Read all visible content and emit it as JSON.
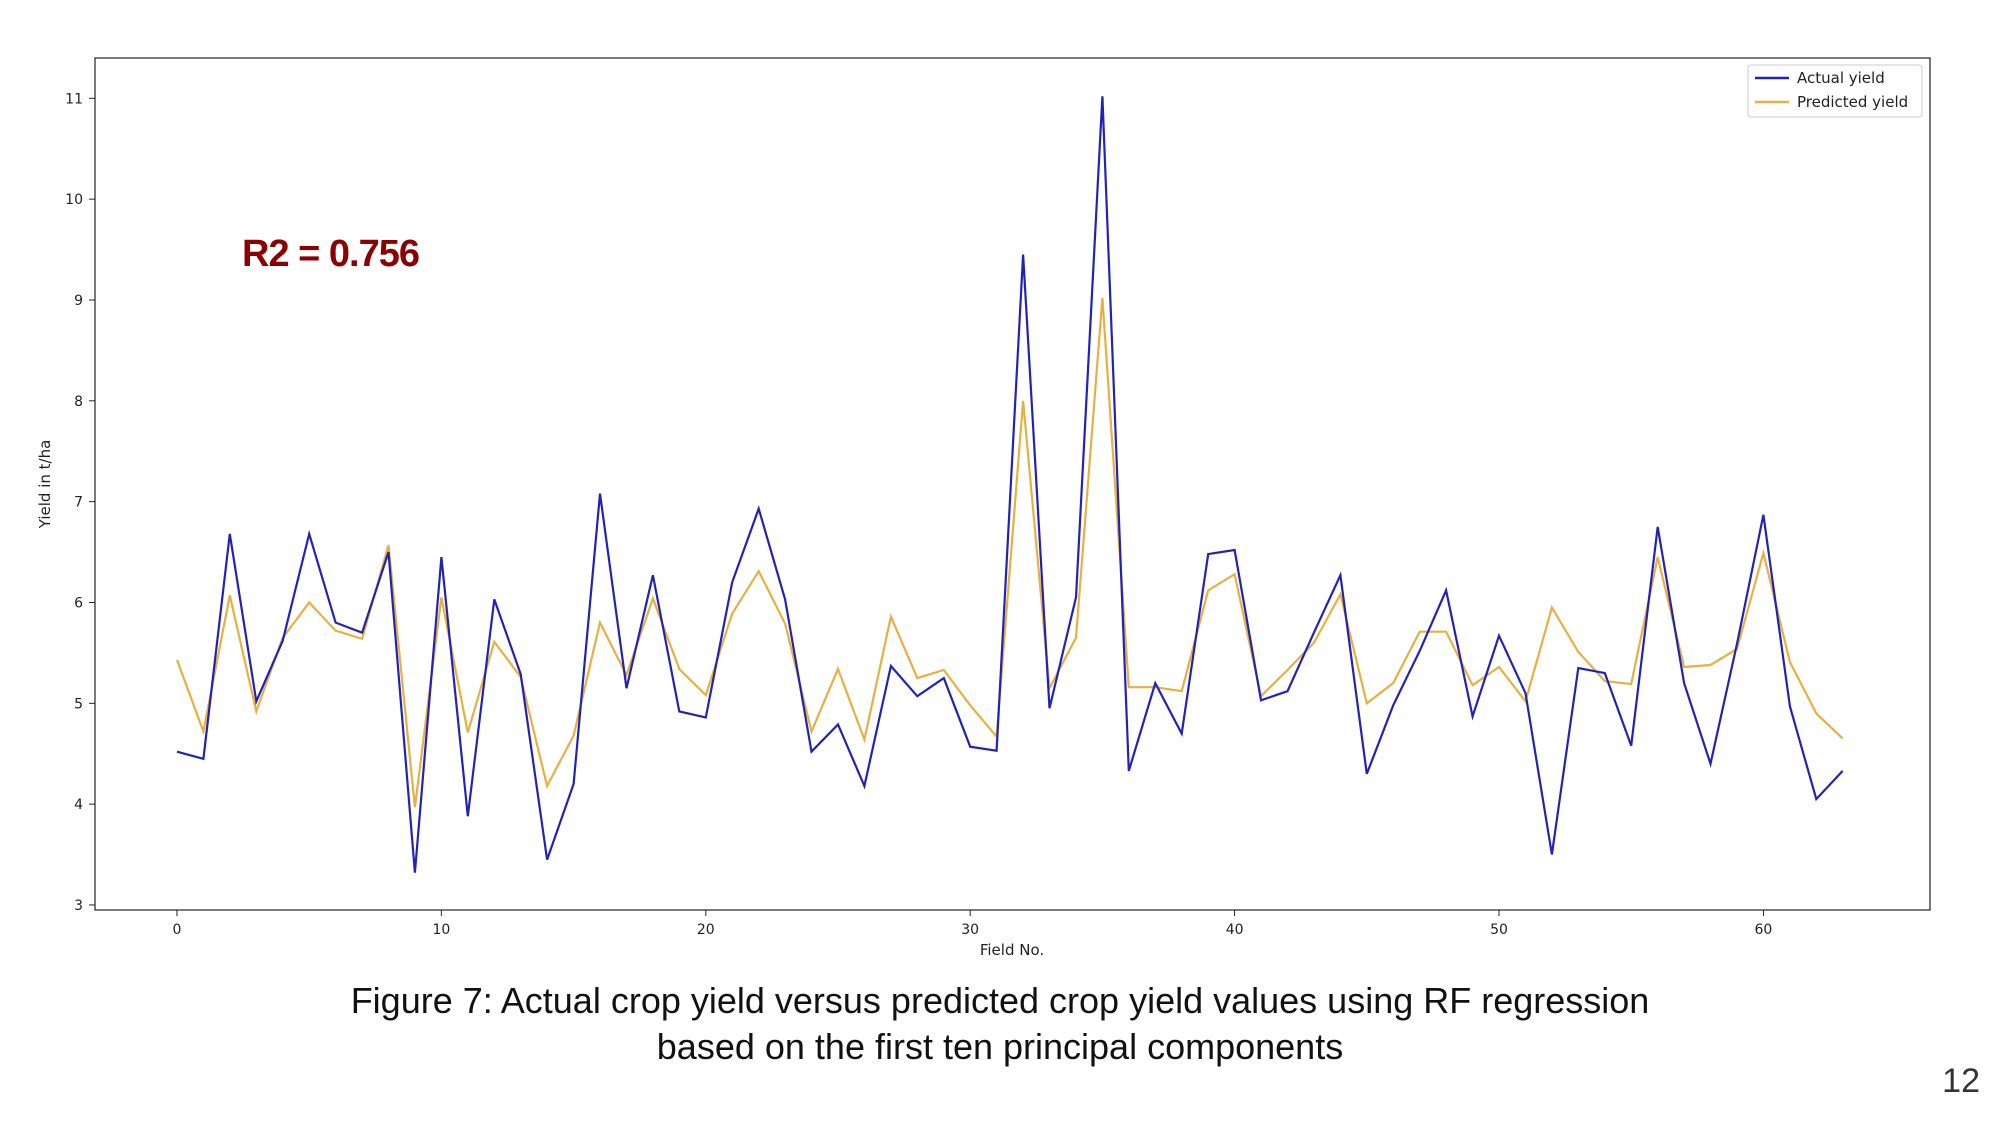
{
  "chart_data": {
    "type": "line",
    "title": "",
    "xlabel": "Field No.",
    "ylabel": "Yield in t/ha",
    "xlim": [
      -3.1,
      66.3
    ],
    "ylim": [
      2.95,
      11.4
    ],
    "x_ticks": [
      0,
      10,
      20,
      30,
      40,
      50,
      60
    ],
    "y_ticks": [
      3,
      4,
      5,
      6,
      7,
      8,
      9,
      10,
      11
    ],
    "grid": false,
    "legend_position": "top-right",
    "x": [
      0,
      1,
      2,
      3,
      4,
      5,
      6,
      7,
      8,
      9,
      10,
      11,
      12,
      13,
      14,
      15,
      16,
      17,
      18,
      19,
      20,
      21,
      22,
      23,
      24,
      25,
      26,
      27,
      28,
      29,
      30,
      31,
      32,
      33,
      34,
      35,
      36,
      37,
      38,
      39,
      40,
      41,
      42,
      43,
      44,
      45,
      46,
      47,
      48,
      49,
      50,
      51,
      52,
      53,
      54,
      55,
      56,
      57,
      58,
      59,
      60,
      61,
      62,
      63
    ],
    "series": [
      {
        "name": "Actual yield",
        "color": "#2222b8",
        "values": [
          4.52,
          4.45,
          6.68,
          5.02,
          5.62,
          6.68,
          5.8,
          5.7,
          6.5,
          3.32,
          6.45,
          3.88,
          6.03,
          5.29,
          3.45,
          4.2,
          7.08,
          5.15,
          6.27,
          4.92,
          4.86,
          6.2,
          6.93,
          6.03,
          4.52,
          4.79,
          4.18,
          5.37,
          5.07,
          5.25,
          4.57,
          4.53,
          9.45,
          4.95,
          6.05,
          11.02,
          4.33,
          5.2,
          4.7,
          6.48,
          6.52,
          5.03,
          5.12,
          5.7,
          6.27,
          4.3,
          4.98,
          5.52,
          6.12,
          4.87,
          5.67,
          5.1,
          3.5,
          5.35,
          5.3,
          4.58,
          6.75,
          5.2,
          4.4,
          5.59,
          6.87,
          4.97,
          4.05,
          4.33
        ]
      },
      {
        "name": "Predicted yield",
        "color": "#e8b040",
        "values": [
          5.43,
          4.72,
          6.07,
          4.92,
          5.65,
          6.0,
          5.72,
          5.64,
          6.57,
          3.97,
          6.05,
          4.71,
          5.61,
          5.26,
          4.18,
          4.68,
          5.8,
          5.28,
          6.04,
          5.34,
          5.08,
          5.89,
          6.31,
          5.79,
          4.72,
          5.34,
          4.64,
          5.86,
          5.25,
          5.33,
          4.98,
          4.67,
          8.0,
          5.15,
          5.65,
          9.02,
          5.16,
          5.16,
          5.12,
          6.12,
          6.28,
          5.07,
          5.33,
          5.6,
          6.08,
          5.0,
          5.2,
          5.71,
          5.71,
          5.18,
          5.36,
          5.02,
          5.95,
          5.51,
          5.22,
          5.19,
          6.45,
          5.36,
          5.38,
          5.54,
          6.49,
          5.41,
          4.9,
          4.65
        ]
      }
    ],
    "annotation": {
      "text": "R2 = 0.756",
      "color": "#8b0000"
    }
  },
  "caption": {
    "line1": "Figure 7: Actual crop yield versus predicted crop yield values using RF regression",
    "line2": "based on the first ten principal components"
  },
  "page_number": "12"
}
